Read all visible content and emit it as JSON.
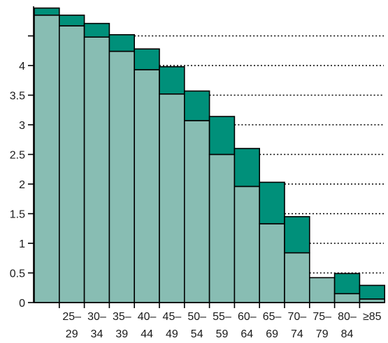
{
  "chart_data": {
    "type": "bar",
    "stacked": true,
    "categories": [
      [
        "",
        ""
      ],
      [
        "25–",
        "29"
      ],
      [
        "30–",
        "34"
      ],
      [
        "35–",
        "39"
      ],
      [
        "40–",
        "44"
      ],
      [
        "45–",
        "49"
      ],
      [
        "50–",
        "54"
      ],
      [
        "55–",
        "59"
      ],
      [
        "60–",
        "64"
      ],
      [
        "65–",
        "69"
      ],
      [
        "70–",
        "74"
      ],
      [
        "75–",
        "79"
      ],
      [
        "80–",
        "84"
      ],
      [
        "≥85",
        ""
      ]
    ],
    "series": [
      {
        "color": "#88bdb3",
        "values": [
          4.85,
          4.67,
          4.48,
          4.24,
          3.93,
          3.52,
          3.07,
          2.5,
          1.96,
          1.33,
          0.84,
          0.42,
          0.15,
          0.06
        ]
      },
      {
        "color": "#00907a",
        "values": [
          0.12,
          0.18,
          0.23,
          0.28,
          0.35,
          0.46,
          0.5,
          0.64,
          0.64,
          0.7,
          0.61,
          0.0,
          0.34,
          0.23
        ]
      }
    ],
    "ylim": [
      0,
      5.0
    ],
    "yticks": [
      "0",
      "0.5",
      "1",
      "1.5",
      "2",
      "2.5",
      "3",
      "3.5",
      "4",
      ""
    ],
    "ytick_values": [
      0,
      0.5,
      1,
      1.5,
      2,
      2.5,
      3,
      3.5,
      4,
      4.5
    ],
    "grid": "dotted horizontal lines at right of bars",
    "legend": "none",
    "xlabel": "",
    "ylabel": "",
    "title": ""
  }
}
